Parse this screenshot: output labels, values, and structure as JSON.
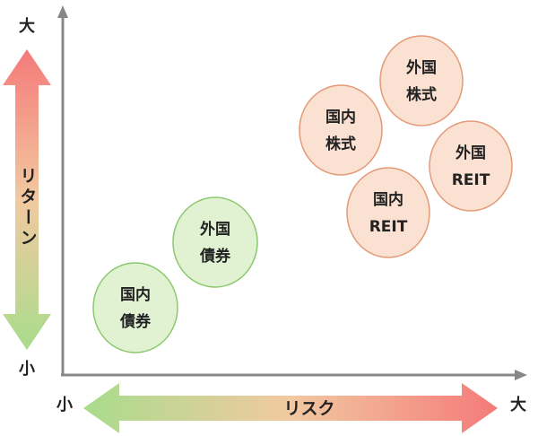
{
  "y_axis": {
    "label": "リターン",
    "high": "大",
    "low": "小"
  },
  "x_axis": {
    "label": "リスク",
    "high": "大",
    "low": "小"
  },
  "nodes": [
    {
      "lines": [
        "国内",
        "債券"
      ]
    },
    {
      "lines": [
        "外国",
        "債券"
      ]
    },
    {
      "lines": [
        "国内",
        "株式"
      ]
    },
    {
      "lines": [
        "外国",
        "株式"
      ]
    },
    {
      "lines": [
        "外国",
        "REIT"
      ]
    },
    {
      "lines": [
        "国内",
        "REIT"
      ]
    }
  ]
}
